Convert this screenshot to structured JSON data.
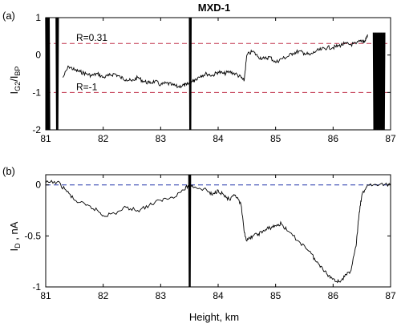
{
  "title": "MXD-1",
  "chart_data": [
    {
      "type": "line",
      "panel_label": "(a)",
      "ylabel": {
        "main": "I",
        "sub1": "G2",
        "mid": "/I",
        "sub2": "BP"
      },
      "xlim": [
        81,
        87
      ],
      "ylim": [
        -2,
        1
      ],
      "x_ticks": [
        81,
        82,
        83,
        84,
        85,
        86,
        87
      ],
      "y_ticks": [
        -2,
        -1,
        0,
        1
      ],
      "reference_lines": [
        {
          "y": 0.31,
          "label": "R=0.31",
          "color": "#c0304a",
          "style": "dashed"
        },
        {
          "y": -1,
          "label": "R=-1",
          "color": "#c0304a",
          "style": "dashed"
        }
      ],
      "series": [
        {
          "color": "#000000",
          "x": [
            81.3,
            81.4,
            81.5,
            81.6,
            81.7,
            81.8,
            81.9,
            82.0,
            82.1,
            82.2,
            82.3,
            82.4,
            82.5,
            82.6,
            82.7,
            82.8,
            82.9,
            83.0,
            83.1,
            83.2,
            83.3,
            83.4,
            83.45,
            83.55,
            83.6,
            83.7,
            83.8,
            83.9,
            84.0,
            84.1,
            84.2,
            84.3,
            84.4,
            84.45,
            84.5,
            84.6,
            84.7,
            84.8,
            84.9,
            85.0,
            85.1,
            85.2,
            85.3,
            85.4,
            85.5,
            85.6,
            85.7,
            85.8,
            85.9,
            86.0,
            86.1,
            86.2,
            86.3,
            86.4,
            86.5,
            86.55,
            86.6
          ],
          "y": [
            -0.6,
            -0.3,
            -0.4,
            -0.45,
            -0.5,
            -0.55,
            -0.5,
            -0.6,
            -0.55,
            -0.5,
            -0.6,
            -0.65,
            -0.7,
            -0.6,
            -0.7,
            -0.75,
            -0.7,
            -0.8,
            -0.75,
            -0.8,
            -0.85,
            -0.8,
            -0.8,
            -0.7,
            -0.65,
            -0.55,
            -0.5,
            -0.55,
            -0.45,
            -0.5,
            -0.45,
            -0.5,
            -0.6,
            -0.7,
            0.0,
            0.1,
            -0.05,
            -0.1,
            -0.05,
            -0.2,
            -0.1,
            -0.05,
            0.05,
            0.1,
            0.05,
            0.0,
            0.1,
            0.15,
            0.2,
            0.2,
            0.25,
            0.3,
            0.28,
            0.3,
            0.4,
            0.35,
            0.55
          ]
        }
      ],
      "noise_bursts": [
        {
          "x_from": 81.0,
          "x_to": 81.07,
          "y_from": -2,
          "y_to": 1
        },
        {
          "x_from": 81.18,
          "x_to": 81.22,
          "y_from": -2,
          "y_to": 1
        },
        {
          "x_from": 83.5,
          "x_to": 83.53,
          "y_from": -2,
          "y_to": 1
        },
        {
          "x_from": 86.7,
          "x_to": 86.9,
          "y_from": -2,
          "y_to": 0.6
        }
      ]
    },
    {
      "type": "line",
      "panel_label": "(b)",
      "ylabel": {
        "main": "I",
        "sub1": "D",
        "mid": " , nA"
      },
      "xlabel": "Height, km",
      "xlim": [
        81,
        87
      ],
      "ylim": [
        -1,
        0.1
      ],
      "x_ticks": [
        81,
        82,
        83,
        84,
        85,
        86,
        87
      ],
      "y_ticks": [
        -1,
        -0.5,
        0
      ],
      "reference_lines": [
        {
          "y": 0,
          "color": "#2233aa",
          "style": "dashed"
        }
      ],
      "series": [
        {
          "color": "#000000",
          "x": [
            81.0,
            81.2,
            81.35,
            81.5,
            81.7,
            81.9,
            82.0,
            82.2,
            82.4,
            82.6,
            82.8,
            83.0,
            83.2,
            83.4,
            83.5,
            83.6,
            83.8,
            83.9,
            84.0,
            84.1,
            84.2,
            84.3,
            84.4,
            84.45,
            84.5,
            84.6,
            84.7,
            84.8,
            84.9,
            85.0,
            85.1,
            85.2,
            85.4,
            85.6,
            85.7,
            85.8,
            85.9,
            86.0,
            86.1,
            86.2,
            86.3,
            86.4,
            86.45,
            86.5,
            86.6,
            86.8,
            87.0
          ],
          "y": [
            0.02,
            0.03,
            -0.05,
            -0.15,
            -0.2,
            -0.25,
            -0.3,
            -0.28,
            -0.22,
            -0.25,
            -0.2,
            -0.15,
            -0.12,
            -0.05,
            0.0,
            -0.02,
            -0.05,
            -0.1,
            -0.05,
            -0.1,
            -0.15,
            -0.1,
            -0.2,
            -0.45,
            -0.55,
            -0.5,
            -0.48,
            -0.45,
            -0.42,
            -0.4,
            -0.38,
            -0.45,
            -0.55,
            -0.65,
            -0.75,
            -0.8,
            -0.88,
            -0.92,
            -0.95,
            -0.9,
            -0.85,
            -0.6,
            -0.3,
            -0.1,
            0.0,
            0.0,
            0.0
          ]
        }
      ],
      "noise_bursts": [
        {
          "x_from": 83.49,
          "x_to": 83.52,
          "y_from": -1,
          "y_to": 0.1
        }
      ]
    }
  ]
}
